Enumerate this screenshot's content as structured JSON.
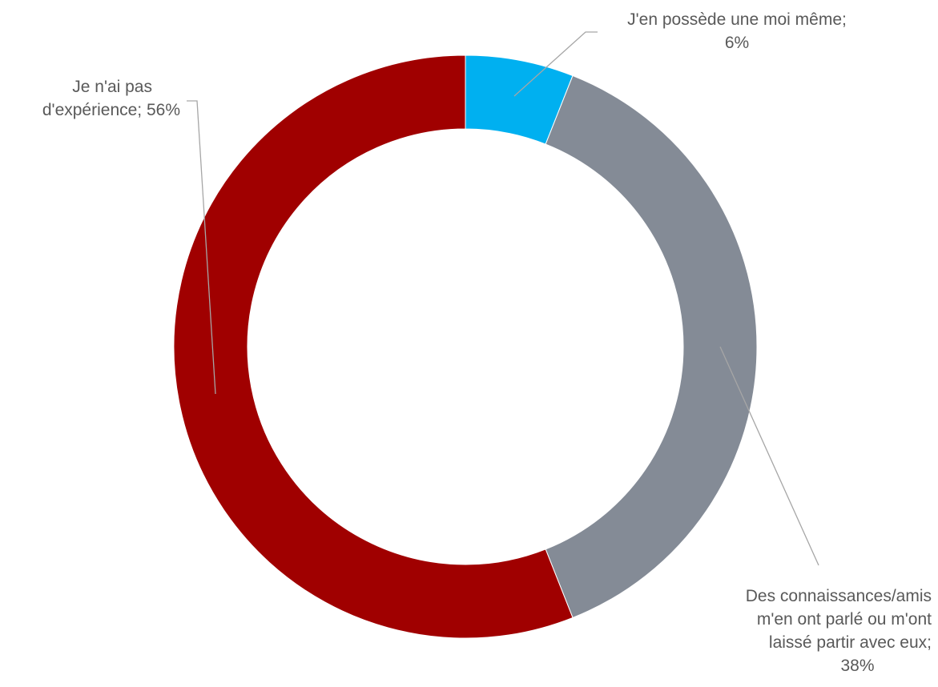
{
  "chart_data": {
    "type": "pie",
    "subtype": "donut",
    "start_angle_deg": 0,
    "direction": "clockwise",
    "slices": [
      {
        "category": "J'en possède une moi même",
        "value": 6,
        "value_label": "6%",
        "color": "#00B0F0",
        "label_lines": [
          "J'en possède une moi même;",
          "6%"
        ]
      },
      {
        "category": "Des connaissances/amis m'en ont parlé ou m'ont laissé partir avec eux",
        "value": 38,
        "value_label": "38%",
        "color": "#848B96",
        "label_lines": [
          "Des connaissances/amis",
          "m'en ont parlé ou m'ont",
          "laissé partir avec eux;",
          "38%"
        ]
      },
      {
        "category": "Je n'ai pas d'expérience",
        "value": 56,
        "value_label": "56%",
        "color": "#A00000",
        "label_lines": [
          "Je n'ai pas",
          "d'expérience; 56%"
        ]
      }
    ],
    "legend": "none",
    "leader_line_color": "#A6A6A6",
    "label_color": "#595959"
  }
}
